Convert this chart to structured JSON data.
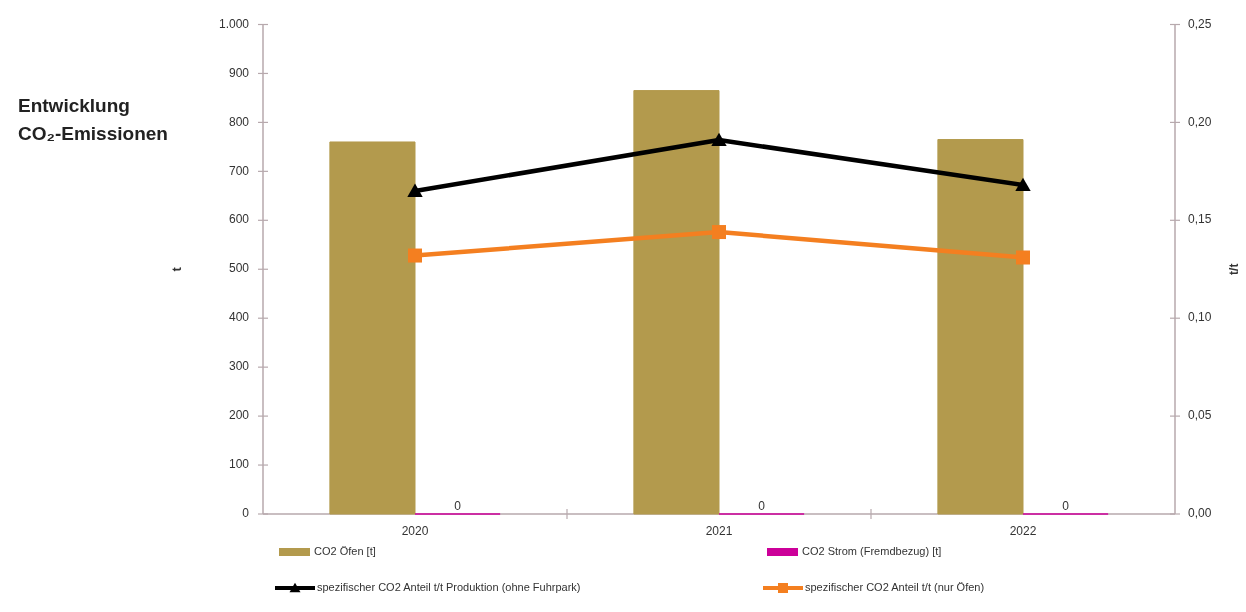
{
  "chart_data": {
    "type": "bar",
    "title": "Entwicklung CO₂-Emissionen",
    "ylabel": "t",
    "y2label": "t/t",
    "categories": [
      "2020",
      "2021",
      "2022"
    ],
    "series": [
      {
        "name": "CO2 Öfen [t]",
        "color": "#b39a4d",
        "values": [
          760,
          865,
          765
        ]
      },
      {
        "name": "CO2 Strom (Fremdbezug) [t]",
        "color": "#cc0099",
        "values": [
          0,
          0,
          0
        ],
        "value_labels": [
          "0",
          "0",
          "0"
        ]
      },
      {
        "name": "spezifischer CO2 Anteil t/t Produktion (ohne Fuhrpark)",
        "type": "line",
        "axis": "y2",
        "color": "#000000",
        "marker": "triangle",
        "values": [
          0.165,
          0.191,
          0.168
        ]
      },
      {
        "name": "spezifischer CO2 Anteil t/t (nur Öfen)",
        "type": "line",
        "axis": "y2",
        "color": "#f47f20",
        "marker": "square",
        "values": [
          0.132,
          0.144,
          0.131
        ]
      }
    ],
    "ylim": [
      0,
      1000
    ],
    "yticks": [
      0,
      100,
      200,
      300,
      400,
      500,
      600,
      700,
      800,
      900,
      {
        "value": 1000,
        "label": "1.000"
      }
    ],
    "y2lim": [
      0,
      0.25
    ],
    "y2ticks": [
      {
        "value": 0,
        "label": "0,00"
      },
      {
        "value": 0.05,
        "label": "0,05"
      },
      {
        "value": 0.1,
        "label": "0,10"
      },
      {
        "value": 0.15,
        "label": "0,15"
      },
      {
        "value": 0.2,
        "label": "0,20"
      },
      {
        "value": 0.25,
        "label": "0,25"
      }
    ],
    "legend": "bottom"
  }
}
